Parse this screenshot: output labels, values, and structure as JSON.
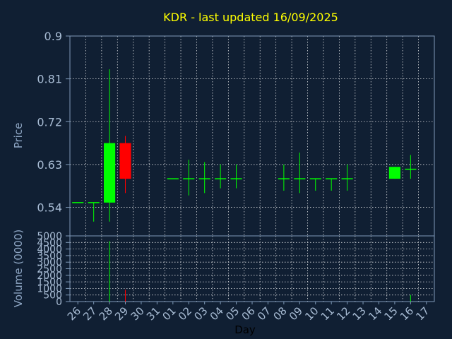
{
  "chart_data": {
    "title": "KDR - last updated 16/09/2025",
    "colors": {
      "background": "#101f33",
      "up": "#00ff00",
      "down": "#ff0000",
      "grid": "#ffffff",
      "text": "#a8bcd4",
      "title": "#ffff00"
    },
    "price_panel": {
      "type": "candlestick",
      "ylabel": "Price",
      "ylim": [
        0.48,
        0.9
      ],
      "yticks": [
        "0.9",
        "0.81",
        "0.72",
        "0.63",
        "0.54"
      ],
      "ytick_values": [
        0.9,
        0.81,
        0.72,
        0.63,
        0.54
      ],
      "candles": [
        {
          "day": "26",
          "open": 0.55,
          "high": 0.55,
          "low": 0.55,
          "close": 0.55
        },
        {
          "day": "27",
          "open": 0.55,
          "high": 0.55,
          "low": 0.51,
          "close": 0.55
        },
        {
          "day": "28",
          "open": 0.55,
          "high": 0.83,
          "low": 0.51,
          "close": 0.675
        },
        {
          "day": "29",
          "open": 0.675,
          "high": 0.69,
          "low": 0.57,
          "close": 0.6
        },
        {
          "day": "01",
          "open": 0.6,
          "high": 0.6,
          "low": 0.6,
          "close": 0.6
        },
        {
          "day": "02",
          "open": 0.6,
          "high": 0.64,
          "low": 0.565,
          "close": 0.6
        },
        {
          "day": "03",
          "open": 0.6,
          "high": 0.635,
          "low": 0.57,
          "close": 0.6
        },
        {
          "day": "04",
          "open": 0.6,
          "high": 0.63,
          "low": 0.58,
          "close": 0.6
        },
        {
          "day": "05",
          "open": 0.6,
          "high": 0.63,
          "low": 0.58,
          "close": 0.6
        },
        {
          "day": "08",
          "open": 0.6,
          "high": 0.63,
          "low": 0.575,
          "close": 0.6
        },
        {
          "day": "09",
          "open": 0.6,
          "high": 0.655,
          "low": 0.57,
          "close": 0.6
        },
        {
          "day": "10",
          "open": 0.6,
          "high": 0.6,
          "low": 0.575,
          "close": 0.6
        },
        {
          "day": "11",
          "open": 0.6,
          "high": 0.6,
          "low": 0.575,
          "close": 0.6
        },
        {
          "day": "12",
          "open": 0.6,
          "high": 0.63,
          "low": 0.575,
          "close": 0.6
        },
        {
          "day": "15",
          "open": 0.6,
          "high": 0.625,
          "low": 0.6,
          "close": 0.625
        },
        {
          "day": "16",
          "open": 0.62,
          "high": 0.65,
          "low": 0.6,
          "close": 0.62
        }
      ]
    },
    "volume_panel": {
      "type": "bar",
      "ylabel": "Volume (0000)",
      "ylim": [
        0,
        5000
      ],
      "yticks": [
        "5000",
        "4500",
        "4000",
        "3500",
        "3000",
        "2500",
        "2000",
        "1500",
        "1000",
        "500",
        "0"
      ],
      "ytick_values": [
        5000,
        4500,
        4000,
        3500,
        3000,
        2500,
        2000,
        1500,
        1000,
        500,
        0
      ],
      "bars": [
        {
          "day": "28",
          "value": 4600,
          "direction": "up"
        },
        {
          "day": "29",
          "value": 900,
          "direction": "down"
        },
        {
          "day": "16",
          "value": 500,
          "direction": "up"
        }
      ]
    },
    "xlabel": "Day",
    "x_categories": [
      "26",
      "27",
      "28",
      "29",
      "30",
      "31",
      "01",
      "02",
      "03",
      "04",
      "05",
      "06",
      "07",
      "08",
      "09",
      "10",
      "11",
      "12",
      "13",
      "14",
      "15",
      "16",
      "17"
    ],
    "grid": true
  }
}
